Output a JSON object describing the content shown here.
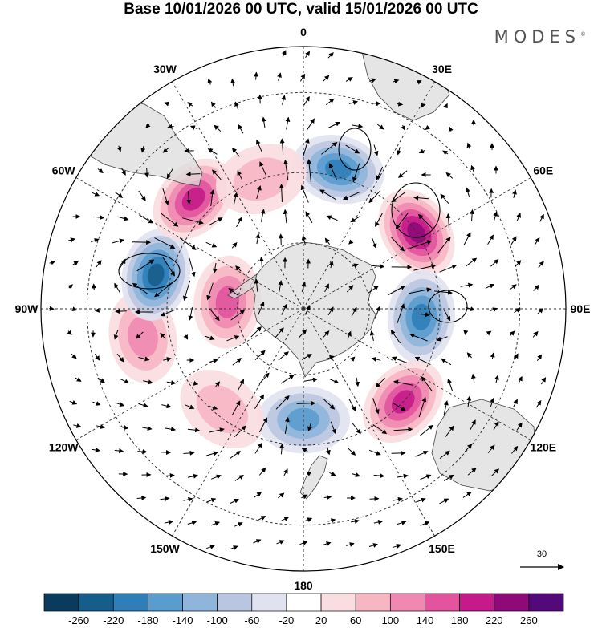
{
  "title": "Base 10/01/2026 00 UTC, valid 15/01/2026 00 UTC",
  "brand": {
    "name": "MODES",
    "mark": "©"
  },
  "reference_vector": {
    "label": "30"
  },
  "chart_data": {
    "type": "heatmap",
    "projection": "south-polar-stereographic",
    "title": "Base 10/01/2026 00 UTC, valid 15/01/2026 00 UTC",
    "longitude_labels": [
      {
        "lon": 0,
        "label": "0"
      },
      {
        "lon": 30,
        "label": "30E"
      },
      {
        "lon": 60,
        "label": "60E"
      },
      {
        "lon": 90,
        "label": "90E"
      },
      {
        "lon": 120,
        "label": "120E"
      },
      {
        "lon": 150,
        "label": "150E"
      },
      {
        "lon": 180,
        "label": "180"
      },
      {
        "lon": -150,
        "label": "150W"
      },
      {
        "lon": -120,
        "label": "120W"
      },
      {
        "lon": -90,
        "label": "90W"
      },
      {
        "lon": -60,
        "label": "60W"
      },
      {
        "lon": -30,
        "label": "30W"
      }
    ],
    "colorbar": {
      "ticks": [
        "-260",
        "-220",
        "-180",
        "-140",
        "-100",
        "-60",
        "-20",
        "20",
        "60",
        "100",
        "140",
        "180",
        "220",
        "260"
      ],
      "colors": [
        "#0a3a5c",
        "#175d8c",
        "#2f7eb8",
        "#5a9ccd",
        "#8fb6da",
        "#bac6e0",
        "#e0e2ef",
        "#ffffff",
        "#fadde0",
        "#f6b6c2",
        "#f089b1",
        "#e2549e",
        "#c51b8a",
        "#8e0a79",
        "#520a78"
      ]
    },
    "anomalies": [
      {
        "lon": 14,
        "lat": -48,
        "value": -190,
        "sign": "negative"
      },
      {
        "lon": 56,
        "lat": -50,
        "value": 200,
        "sign": "positive"
      },
      {
        "lon": 94,
        "lat": -55,
        "value": -170,
        "sign": "negative"
      },
      {
        "lon": 133,
        "lat": -50,
        "value": 180,
        "sign": "positive"
      },
      {
        "lon": 180,
        "lat": -57,
        "value": -120,
        "sign": "negative"
      },
      {
        "lon": -141,
        "lat": -52,
        "value": 70,
        "sign": "positive"
      },
      {
        "lon": -100,
        "lat": -43,
        "value": 90,
        "sign": "positive"
      },
      {
        "lon": -77,
        "lat": -46,
        "value": -210,
        "sign": "negative"
      },
      {
        "lon": -45,
        "lat": -45,
        "value": 160,
        "sign": "positive"
      },
      {
        "lon": -18,
        "lat": -50,
        "value": 50,
        "sign": "positive"
      },
      {
        "lon": -85,
        "lat": -67,
        "value": 130,
        "sign": "positive"
      }
    ]
  }
}
